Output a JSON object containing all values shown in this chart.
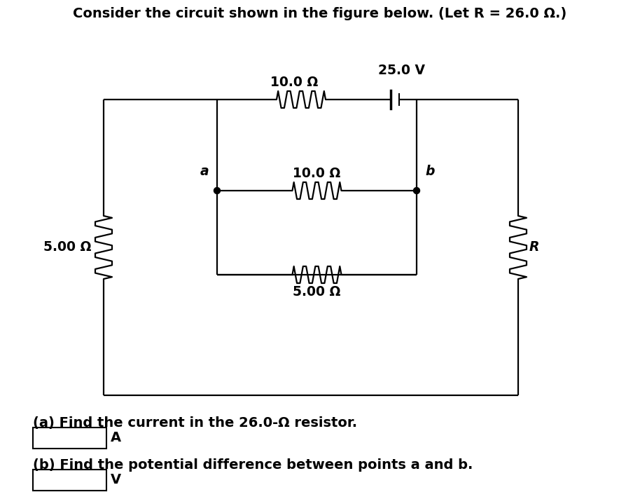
{
  "title": "Consider the circuit shown in the figure below. (Let R = 26.0 Ω.)",
  "title_fontsize": 14,
  "question_a": "(a) Find the current in the 26.0-Ω resistor.",
  "question_b": "(b) Find the potential difference between points a and b.",
  "unit_a": "A",
  "unit_b": "V",
  "label_R1_top": "10.0 Ω",
  "label_R2_mid": "10.0 Ω",
  "label_R3_bot": "5.00 Ω",
  "label_R4_left": "5.00 Ω",
  "label_R5_right": "R",
  "label_battery": "25.0 V",
  "label_a": "a",
  "label_b": "b",
  "bg_color": "#ffffff",
  "line_color": "#000000",
  "dot_color": "#000000",
  "font_color": "#000000",
  "lw": 1.6,
  "res_lw": 1.6,
  "dot_r": 4.5
}
